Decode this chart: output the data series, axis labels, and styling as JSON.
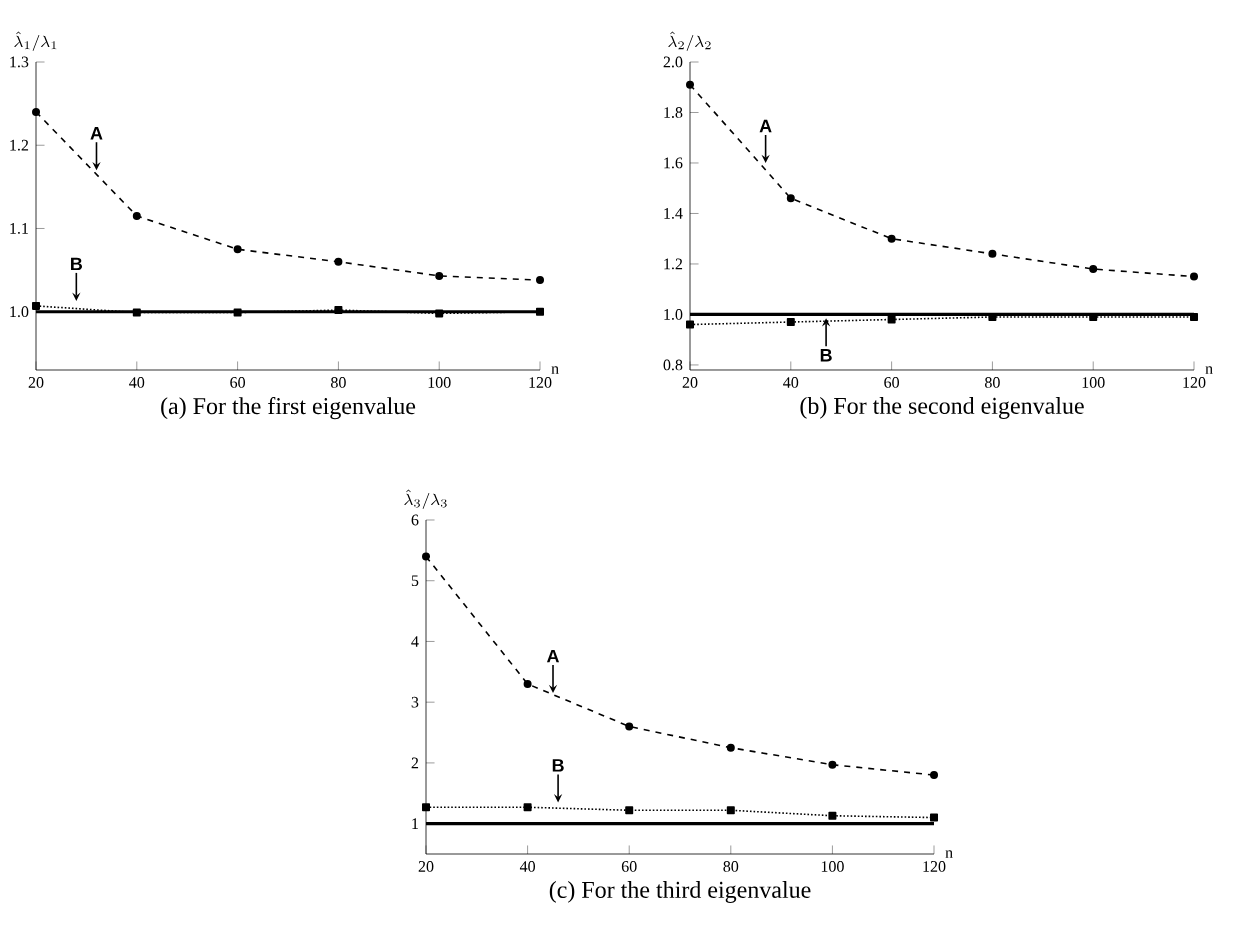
{
  "chart_data": [
    {
      "type": "line",
      "title": "(a) For the first eigenvalue",
      "xlabel": "n",
      "ylabel": "\\hat{\\lambda}_1/\\lambda_1",
      "x": [
        20,
        40,
        60,
        80,
        100,
        120
      ],
      "xlim": [
        20,
        120
      ],
      "xticks": [
        20,
        40,
        60,
        80,
        100,
        120
      ],
      "ylim": [
        0.93,
        1.3
      ],
      "yticks": [
        {
          "value": 1.0,
          "label": "1.0"
        },
        1.1,
        1.2,
        1.3
      ],
      "series": [
        {
          "color": "#000000",
          "line_style": "dashed",
          "marker": "circle",
          "values": [
            1.24,
            1.115,
            1.075,
            1.06,
            1.043,
            1.038
          ]
        },
        {
          "color": "#000000",
          "line_style": "dotted",
          "marker": "square",
          "values": [
            1.007,
            0.999,
            0.999,
            1.002,
            0.998,
            1.0
          ]
        }
      ],
      "ref_lines": [
        {
          "axis": "y",
          "value": 1,
          "color": "#000000",
          "line_style": "solid"
        }
      ],
      "annotations": [
        {
          "text": "A",
          "x": 32,
          "y": 1.17
        },
        {
          "text": "B",
          "x": 28,
          "y": 1.013
        }
      ]
    },
    {
      "type": "line",
      "title": "(b) For the second eigenvalue",
      "xlabel": "n",
      "ylabel": "\\hat{\\lambda}_2/\\lambda_2",
      "x": [
        20,
        40,
        60,
        80,
        100,
        120
      ],
      "xlim": [
        20,
        120
      ],
      "xticks": [
        20,
        40,
        60,
        80,
        100,
        120
      ],
      "ylim": [
        0.78,
        2.0
      ],
      "yticks": [
        {
          "value": 0.8,
          "label": "0.8"
        },
        {
          "value": 1.0,
          "label": "1.0"
        },
        1.2,
        1.4,
        1.6,
        1.8,
        {
          "value": 2.0,
          "label": "2.0"
        }
      ],
      "series": [
        {
          "color": "#000000",
          "line_style": "dashed",
          "marker": "circle",
          "values": [
            1.91,
            1.46,
            1.3,
            1.24,
            1.18,
            1.15
          ]
        },
        {
          "color": "#000000",
          "line_style": "dotted",
          "marker": "square",
          "values": [
            0.96,
            0.97,
            0.98,
            0.99,
            0.99,
            0.99
          ]
        }
      ],
      "ref_lines": [
        {
          "axis": "y",
          "value": 1,
          "color": "#000000",
          "line_style": "solid"
        }
      ],
      "annotations": [
        {
          "text": "A",
          "x": 35,
          "y": 1.6
        },
        {
          "text": "B",
          "x": 47,
          "y": 0.985
        }
      ]
    },
    {
      "type": "line",
      "title": "(c) For the third eigenvalue",
      "xlabel": "n",
      "ylabel": "\\hat{\\lambda}_3/\\lambda_3",
      "x": [
        20,
        40,
        60,
        80,
        100,
        120
      ],
      "xlim": [
        20,
        120
      ],
      "xticks": [
        20,
        40,
        60,
        80,
        100,
        120
      ],
      "ylim": [
        0.5,
        6
      ],
      "yticks": [
        1,
        2,
        3,
        4,
        5,
        6
      ],
      "series": [
        {
          "color": "#000000",
          "line_style": "dashed",
          "marker": "circle",
          "values": [
            5.4,
            3.3,
            2.6,
            2.25,
            1.97,
            1.8
          ]
        },
        {
          "color": "#000000",
          "line_style": "dotted",
          "marker": "square",
          "values": [
            1.27,
            1.27,
            1.22,
            1.22,
            1.13,
            1.1
          ]
        }
      ],
      "ref_lines": [
        {
          "axis": "y",
          "value": 1,
          "color": "#000000",
          "line_style": "solid"
        }
      ],
      "annotations": [
        {
          "text": "A",
          "x": 45,
          "y": 3.15
        },
        {
          "text": "B",
          "x": 46,
          "y": 1.35
        }
      ]
    }
  ]
}
